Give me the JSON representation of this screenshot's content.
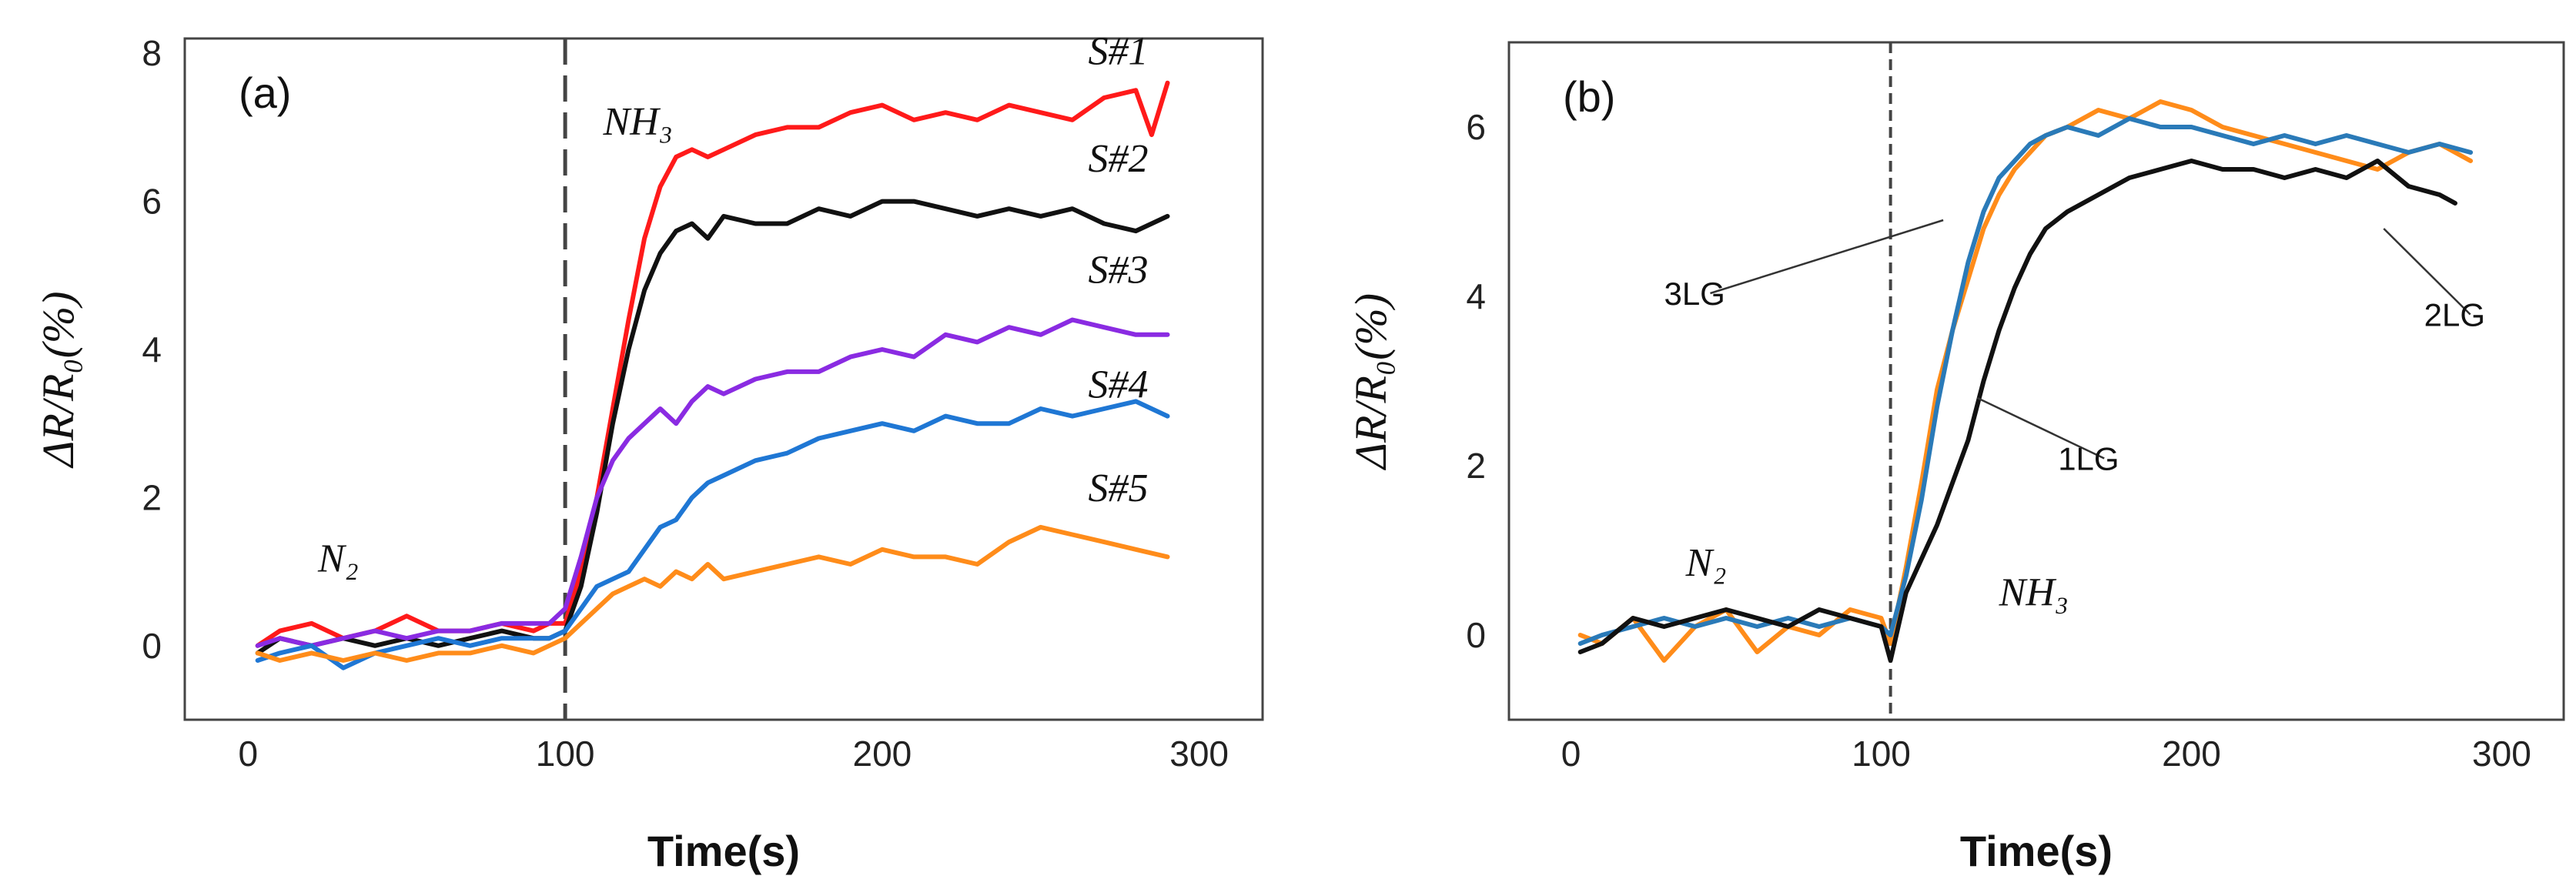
{
  "chart_data": [
    {
      "type": "line",
      "panel_label": "(a)",
      "xlabel": "Time(s)",
      "ylabel": "ΔR/R₀(%)",
      "xlim": [
        -20,
        320
      ],
      "ylim": [
        -1,
        8.2
      ],
      "xticks": [
        0,
        100,
        200,
        300
      ],
      "yticks": [
        0,
        2,
        4,
        6,
        8
      ],
      "vline_x": 100,
      "annotations": [
        {
          "name": "n2",
          "text": "N₂",
          "x": 22,
          "y": 1.0
        },
        {
          "name": "nh3",
          "text": "NH₃",
          "x": 112,
          "y": 6.9
        }
      ],
      "series": [
        {
          "name": "S#1",
          "color": "#ff1a1a",
          "x": [
            3,
            10,
            20,
            30,
            40,
            50,
            60,
            70,
            80,
            90,
            95,
            100,
            105,
            110,
            115,
            120,
            125,
            130,
            135,
            140,
            145,
            150,
            160,
            170,
            180,
            190,
            200,
            210,
            220,
            230,
            240,
            250,
            260,
            270,
            280,
            285,
            290
          ],
          "y": [
            0.0,
            0.2,
            0.3,
            0.1,
            0.2,
            0.4,
            0.2,
            0.2,
            0.3,
            0.2,
            0.3,
            0.3,
            1.0,
            2.0,
            3.2,
            4.4,
            5.5,
            6.2,
            6.6,
            6.7,
            6.6,
            6.7,
            6.9,
            7.0,
            7.0,
            7.2,
            7.3,
            7.1,
            7.2,
            7.1,
            7.3,
            7.2,
            7.1,
            7.4,
            7.5,
            6.9,
            7.6
          ]
        },
        {
          "name": "S#2",
          "color": "#111111",
          "x": [
            3,
            10,
            20,
            30,
            40,
            50,
            60,
            70,
            80,
            90,
            95,
            100,
            105,
            110,
            115,
            120,
            125,
            130,
            135,
            140,
            145,
            150,
            160,
            170,
            180,
            190,
            200,
            210,
            220,
            230,
            240,
            250,
            260,
            270,
            280,
            290
          ],
          "y": [
            -0.1,
            0.1,
            0.0,
            0.1,
            0.0,
            0.1,
            0.0,
            0.1,
            0.2,
            0.1,
            0.1,
            0.2,
            0.8,
            1.8,
            3.0,
            4.0,
            4.8,
            5.3,
            5.6,
            5.7,
            5.5,
            5.8,
            5.7,
            5.7,
            5.9,
            5.8,
            6.0,
            6.0,
            5.9,
            5.8,
            5.9,
            5.8,
            5.9,
            5.7,
            5.6,
            5.8
          ]
        },
        {
          "name": "S#3",
          "color": "#8a2be2",
          "x": [
            3,
            10,
            20,
            30,
            40,
            50,
            60,
            70,
            80,
            90,
            95,
            100,
            105,
            110,
            115,
            120,
            125,
            130,
            135,
            140,
            145,
            150,
            160,
            170,
            180,
            190,
            200,
            210,
            220,
            230,
            240,
            250,
            260,
            270,
            280,
            290
          ],
          "y": [
            0.0,
            0.1,
            0.0,
            0.1,
            0.2,
            0.1,
            0.2,
            0.2,
            0.3,
            0.3,
            0.3,
            0.5,
            1.2,
            2.0,
            2.5,
            2.8,
            3.0,
            3.2,
            3.0,
            3.3,
            3.5,
            3.4,
            3.6,
            3.7,
            3.7,
            3.9,
            4.0,
            3.9,
            4.2,
            4.1,
            4.3,
            4.2,
            4.4,
            4.3,
            4.2,
            4.2
          ]
        },
        {
          "name": "S#4",
          "color": "#1f77d4",
          "x": [
            3,
            10,
            20,
            30,
            40,
            50,
            60,
            70,
            80,
            90,
            95,
            100,
            105,
            110,
            115,
            120,
            125,
            130,
            135,
            140,
            145,
            150,
            160,
            170,
            180,
            190,
            200,
            210,
            220,
            230,
            240,
            250,
            260,
            270,
            280,
            290
          ],
          "y": [
            -0.2,
            -0.1,
            0.0,
            -0.3,
            -0.1,
            0.0,
            0.1,
            0.0,
            0.1,
            0.1,
            0.1,
            0.2,
            0.5,
            0.8,
            0.9,
            1.0,
            1.3,
            1.6,
            1.7,
            2.0,
            2.2,
            2.3,
            2.5,
            2.6,
            2.8,
            2.9,
            3.0,
            2.9,
            3.1,
            3.0,
            3.0,
            3.2,
            3.1,
            3.2,
            3.3,
            3.1
          ]
        },
        {
          "name": "S#5",
          "color": "#ff8c1a",
          "x": [
            3,
            10,
            20,
            30,
            40,
            50,
            60,
            70,
            80,
            90,
            95,
            100,
            105,
            110,
            115,
            120,
            125,
            130,
            135,
            140,
            145,
            150,
            160,
            170,
            180,
            190,
            200,
            210,
            220,
            230,
            240,
            250,
            260,
            270,
            280,
            290
          ],
          "y": [
            -0.1,
            -0.2,
            -0.1,
            -0.2,
            -0.1,
            -0.2,
            -0.1,
            -0.1,
            0.0,
            -0.1,
            0.0,
            0.1,
            0.3,
            0.5,
            0.7,
            0.8,
            0.9,
            0.8,
            1.0,
            0.9,
            1.1,
            0.9,
            1.0,
            1.1,
            1.2,
            1.1,
            1.3,
            1.2,
            1.2,
            1.1,
            1.4,
            1.6,
            1.5,
            1.4,
            1.3,
            1.2
          ]
        }
      ],
      "series_label_positions": [
        {
          "text": "S#1",
          "x": 265,
          "y": 7.85
        },
        {
          "text": "S#2",
          "x": 265,
          "y": 6.4
        },
        {
          "text": "S#3",
          "x": 265,
          "y": 4.9
        },
        {
          "text": "S#4",
          "x": 265,
          "y": 3.35
        },
        {
          "text": "S#5",
          "x": 265,
          "y": 1.95
        }
      ]
    },
    {
      "type": "line",
      "panel_label": "(b)",
      "xlabel": "Time(s)",
      "ylabel": "ΔR/R₀(%)",
      "xlim": [
        -20,
        320
      ],
      "ylim": [
        -1,
        7
      ],
      "xticks": [
        0,
        100,
        200,
        300
      ],
      "yticks": [
        0,
        2,
        4,
        6
      ],
      "vline_x": 103,
      "annotations": [
        {
          "name": "n2",
          "text": "N₂",
          "x": 37,
          "y": 0.7
        },
        {
          "name": "nh3",
          "text": "NH₃",
          "x": 138,
          "y": 0.35
        }
      ],
      "series": [
        {
          "name": "2LG",
          "color": "#ff8c1a",
          "x": [
            3,
            10,
            20,
            30,
            40,
            50,
            60,
            70,
            80,
            90,
            100,
            103,
            108,
            113,
            118,
            123,
            128,
            133,
            138,
            143,
            148,
            153,
            160,
            170,
            180,
            190,
            200,
            210,
            220,
            230,
            240,
            250,
            260,
            270,
            280,
            290
          ],
          "y": [
            0.0,
            -0.1,
            0.2,
            -0.3,
            0.1,
            0.3,
            -0.2,
            0.1,
            0.0,
            0.3,
            0.2,
            -0.1,
            0.8,
            1.8,
            2.9,
            3.6,
            4.2,
            4.8,
            5.2,
            5.5,
            5.7,
            5.9,
            6.0,
            6.2,
            6.1,
            6.3,
            6.2,
            6.0,
            5.9,
            5.8,
            5.7,
            5.6,
            5.5,
            5.7,
            5.8,
            5.6
          ]
        },
        {
          "name": "3LG",
          "color": "#2a7ab8",
          "x": [
            3,
            10,
            20,
            30,
            40,
            50,
            60,
            70,
            80,
            90,
            100,
            103,
            108,
            113,
            118,
            123,
            128,
            133,
            138,
            143,
            148,
            153,
            160,
            170,
            180,
            190,
            200,
            210,
            220,
            230,
            240,
            250,
            260,
            270,
            280,
            290
          ],
          "y": [
            -0.1,
            0.0,
            0.1,
            0.2,
            0.1,
            0.2,
            0.1,
            0.2,
            0.1,
            0.2,
            0.1,
            0.0,
            0.7,
            1.6,
            2.7,
            3.6,
            4.4,
            5.0,
            5.4,
            5.6,
            5.8,
            5.9,
            6.0,
            5.9,
            6.1,
            6.0,
            6.0,
            5.9,
            5.8,
            5.9,
            5.8,
            5.9,
            5.8,
            5.7,
            5.8,
            5.7
          ]
        },
        {
          "name": "1LG",
          "color": "#111111",
          "x": [
            3,
            10,
            20,
            30,
            40,
            50,
            60,
            70,
            80,
            90,
            100,
            103,
            108,
            113,
            118,
            123,
            128,
            133,
            138,
            143,
            148,
            153,
            160,
            170,
            180,
            190,
            200,
            210,
            220,
            230,
            240,
            250,
            260,
            270,
            280,
            285
          ],
          "y": [
            -0.2,
            -0.1,
            0.2,
            0.1,
            0.2,
            0.3,
            0.2,
            0.1,
            0.3,
            0.2,
            0.1,
            -0.3,
            0.5,
            0.9,
            1.3,
            1.8,
            2.3,
            3.0,
            3.6,
            4.1,
            4.5,
            4.8,
            5.0,
            5.2,
            5.4,
            5.5,
            5.6,
            5.5,
            5.5,
            5.4,
            5.5,
            5.4,
            5.6,
            5.3,
            5.2,
            5.1
          ]
        }
      ],
      "callouts": [
        {
          "text": "3LG",
          "label_x": 30,
          "label_y": 3.9,
          "target_x": 120,
          "target_y": 4.9
        },
        {
          "text": "2LG",
          "label_x": 275,
          "label_y": 3.65,
          "target_x": 262,
          "target_y": 4.8
        },
        {
          "text": "1LG",
          "label_x": 157,
          "label_y": 1.95,
          "target_x": 131,
          "target_y": 2.8
        }
      ]
    }
  ]
}
